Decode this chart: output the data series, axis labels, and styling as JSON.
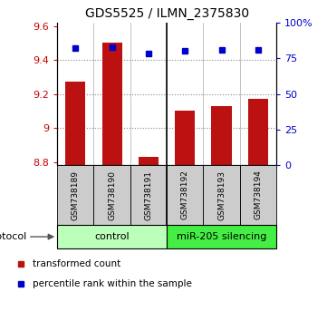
{
  "title": "GDS5525 / ILMN_2375830",
  "samples": [
    "GSM738189",
    "GSM738190",
    "GSM738191",
    "GSM738192",
    "GSM738193",
    "GSM738194"
  ],
  "transformed_counts": [
    9.27,
    9.5,
    8.83,
    9.1,
    9.13,
    9.17
  ],
  "percentile_ranks": [
    82,
    83,
    78,
    80,
    81,
    81
  ],
  "bar_bottom": 8.78,
  "ylim_left": [
    8.78,
    9.62
  ],
  "ylim_right": [
    0,
    100
  ],
  "yticks_left": [
    8.8,
    9.0,
    9.2,
    9.4,
    9.6
  ],
  "ytick_labels_left": [
    "8.8",
    "9",
    "9.2",
    "9.4",
    "9.6"
  ],
  "yticks_right": [
    0,
    25,
    50,
    75,
    100
  ],
  "ytick_labels_right": [
    "0",
    "25",
    "50",
    "75",
    "100%"
  ],
  "bar_color": "#bb1111",
  "dot_color": "#0000cc",
  "groups": [
    {
      "label": "control",
      "start": 0,
      "end": 3,
      "color": "#bbffbb"
    },
    {
      "label": "miR-205 silencing",
      "start": 3,
      "end": 6,
      "color": "#44ee44"
    }
  ],
  "protocol_label": "protocol",
  "legend_items": [
    {
      "label": "transformed count",
      "color": "#bb1111"
    },
    {
      "label": "percentile rank within the sample",
      "color": "#0000cc"
    }
  ],
  "grid_color": "#888888",
  "tick_label_color_left": "#cc0000",
  "tick_label_color_right": "#0000cc",
  "sample_bg_color": "#cccccc",
  "gridline_values": [
    9.0,
    9.2,
    9.4
  ]
}
